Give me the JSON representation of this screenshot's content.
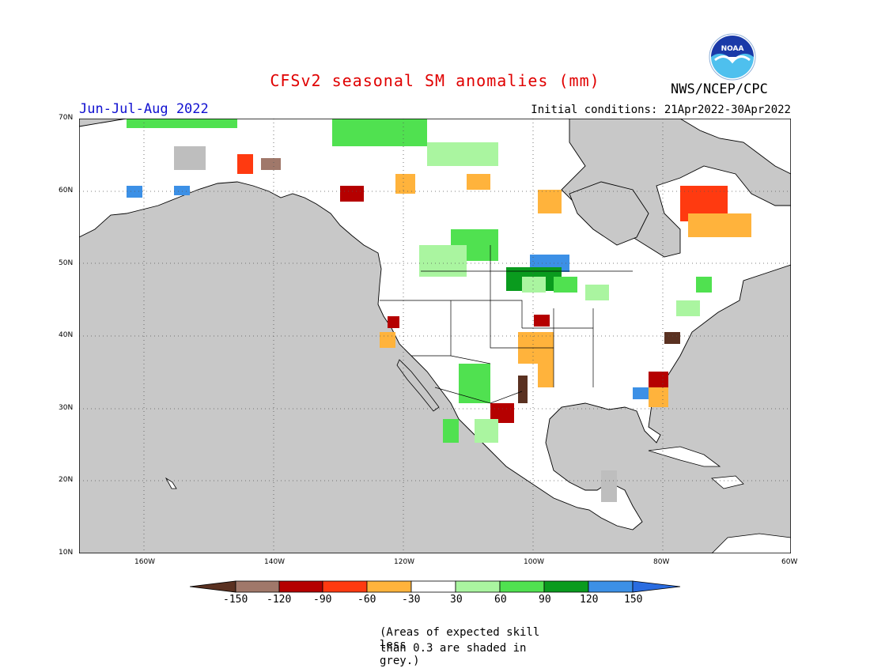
{
  "title": "CFSv2 seasonal SM anomalies (mm)",
  "period": "Jun-Jul-Aug 2022",
  "initial_conditions": "Initial conditions: 21Apr2022-30Apr2022",
  "agency": "NWS/NCEP/CPC",
  "logo_text": "NOAA",
  "lat_labels": [
    "70N",
    "60N",
    "50N",
    "40N",
    "30N",
    "20N",
    "10N"
  ],
  "lon_labels": [
    "160W",
    "140W",
    "120W",
    "100W",
    "80W",
    "60W"
  ],
  "colorbar": {
    "labels": [
      "-150",
      "-120",
      "-90",
      "-60",
      "-30",
      "30",
      "60",
      "90",
      "120",
      "150"
    ],
    "colors": [
      "#5a3121",
      "#a0786a",
      "#b50000",
      "#ff3a10",
      "#ffb33c",
      "#ffffff",
      "#aaf5a0",
      "#50e150",
      "#0a9b1e",
      "#3c90e6",
      "#2a6ce0"
    ]
  },
  "note_line1": "(Areas of expected skill less",
  "note_line2": "than 0.3 are shaded in grey.)",
  "map": {
    "ocean_color": "#c8c8c8",
    "land_color": "#ffffff",
    "grey_color": "#bebebe"
  }
}
